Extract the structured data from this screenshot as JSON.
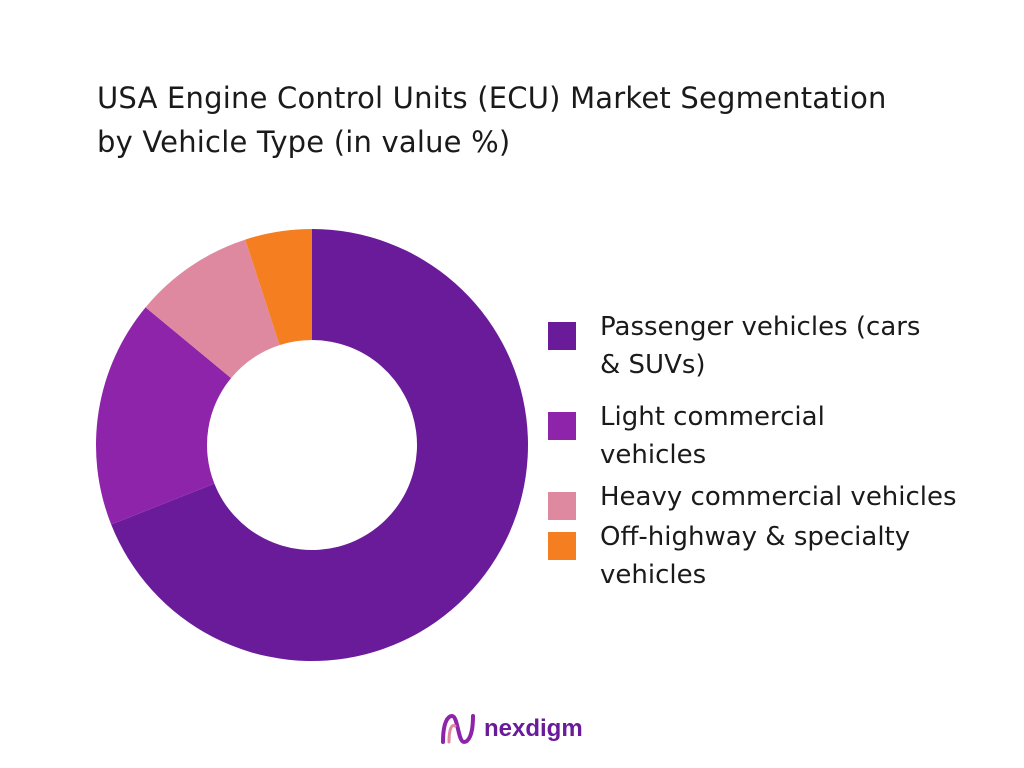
{
  "chart_data": {
    "type": "pie",
    "donut": true,
    "title": "USA Engine Control Units (ECU) Market Segmentation by Vehicle Type (in value %)",
    "title_lines": [
      "USA Engine Control Units (ECU) Market Segmentation",
      "by Vehicle Type (in value %)"
    ],
    "categories": [
      "Passenger vehicles (cars & SUVs)",
      "Light commercial vehicles",
      "Heavy commercial vehicles",
      "Off-highway & specialty vehicles"
    ],
    "legend_lines": [
      [
        "Passenger vehicles (cars",
        "& SUVs)"
      ],
      [
        "Light commercial",
        "vehicles"
      ],
      [
        "Heavy commercial vehicles"
      ],
      [
        "Off-highway & specialty",
        "vehicles"
      ]
    ],
    "values": [
      69,
      17,
      9,
      5
    ],
    "colors": [
      "#6a1b9a",
      "#8e24aa",
      "#de89a0",
      "#f57f20"
    ],
    "legend_position": "right"
  },
  "brand": {
    "name": "nexdigm",
    "color": "#6a1b9a"
  }
}
